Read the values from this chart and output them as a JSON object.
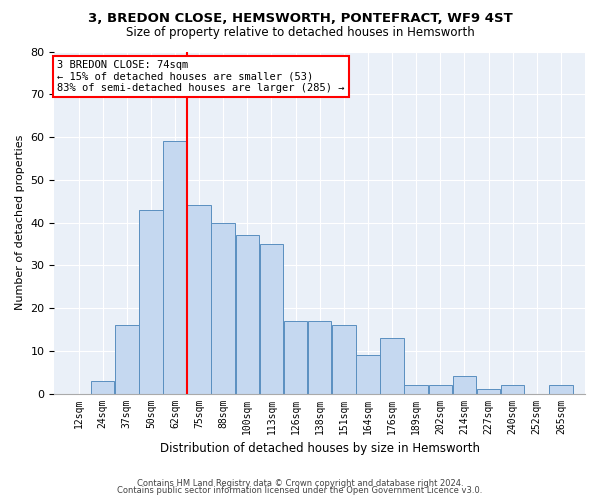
{
  "title_line1": "3, BREDON CLOSE, HEMSWORTH, PONTEFRACT, WF9 4ST",
  "title_line2": "Size of property relative to detached houses in Hemsworth",
  "xlabel": "Distribution of detached houses by size in Hemsworth",
  "ylabel": "Number of detached properties",
  "footnote1": "Contains HM Land Registry data © Crown copyright and database right 2024.",
  "footnote2": "Contains public sector information licensed under the Open Government Licence v3.0.",
  "annotation_line1": "3 BREDON CLOSE: 74sqm",
  "annotation_line2": "← 15% of detached houses are smaller (53)",
  "annotation_line3": "83% of semi-detached houses are larger (285) →",
  "property_size": 74,
  "bins": [
    12,
    25,
    38,
    51,
    64,
    77,
    90,
    103,
    116,
    129,
    142,
    155,
    168,
    181,
    194,
    207,
    220,
    233,
    246,
    259,
    272
  ],
  "bin_labels": [
    "12sqm",
    "24sqm",
    "37sqm",
    "50sqm",
    "62sqm",
    "75sqm",
    "88sqm",
    "100sqm",
    "113sqm",
    "126sqm",
    "138sqm",
    "151sqm",
    "164sqm",
    "176sqm",
    "189sqm",
    "202sqm",
    "214sqm",
    "227sqm",
    "240sqm",
    "252sqm",
    "265sqm"
  ],
  "values": [
    0,
    3,
    16,
    43,
    59,
    44,
    40,
    37,
    35,
    17,
    17,
    16,
    9,
    13,
    2,
    2,
    4,
    1,
    2,
    0,
    2
  ],
  "bar_color": "#c5d8f0",
  "bar_edge_color": "#5a8fc0",
  "vline_color": "red",
  "background_color": "#eaf0f8",
  "grid_color": "white",
  "ylim": [
    0,
    80
  ],
  "yticks": [
    0,
    10,
    20,
    30,
    40,
    50,
    60,
    70,
    80
  ]
}
